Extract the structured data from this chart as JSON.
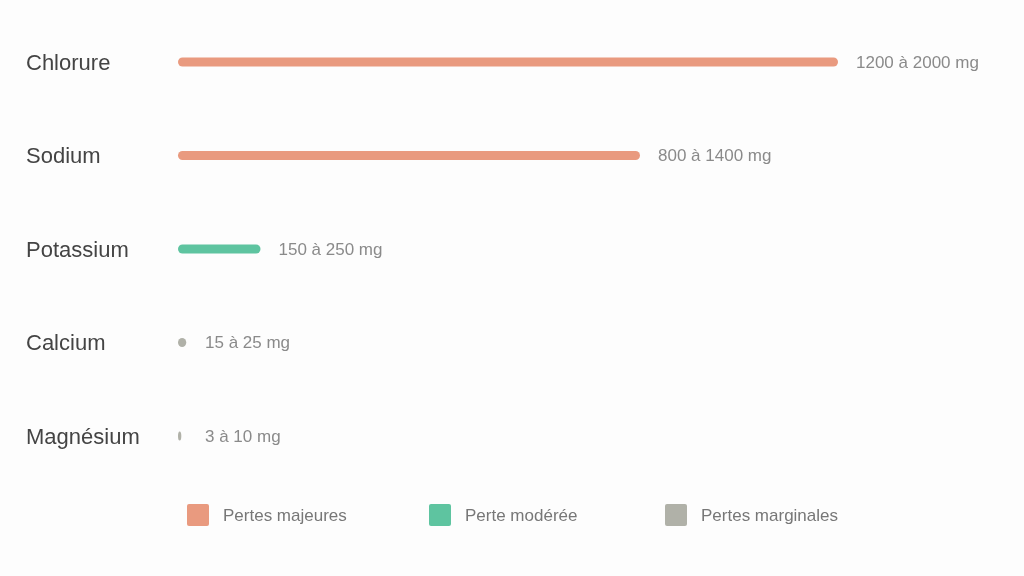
{
  "chart_data": {
    "type": "bar",
    "orientation": "horizontal",
    "xlim": [
      0,
      2000
    ],
    "tick_labels": false,
    "legend": "bottom",
    "categories": [
      "Chlorure",
      "Sodium",
      "Potassium",
      "Calcium",
      "Magnésium"
    ],
    "series": [
      {
        "name": "Pertes majeures",
        "color": "#e99a7f",
        "values": [
          2000,
          1400,
          null,
          null,
          null
        ],
        "value_labels": [
          "1200 à 2000 mg",
          "800 à 1400 mg",
          null,
          null,
          null
        ]
      },
      {
        "name": "Perte modérée",
        "color": "#5ec4a0",
        "values": [
          null,
          null,
          250,
          null,
          null
        ],
        "value_labels": [
          null,
          null,
          "150 à 250 mg",
          null,
          null
        ]
      },
      {
        "name": "Pertes marginales",
        "color": "#b0b1a8",
        "values": [
          null,
          null,
          null,
          25,
          10
        ],
        "value_labels": [
          null,
          null,
          null,
          "15 à 25 mg",
          "3 à 10 mg"
        ]
      }
    ]
  }
}
